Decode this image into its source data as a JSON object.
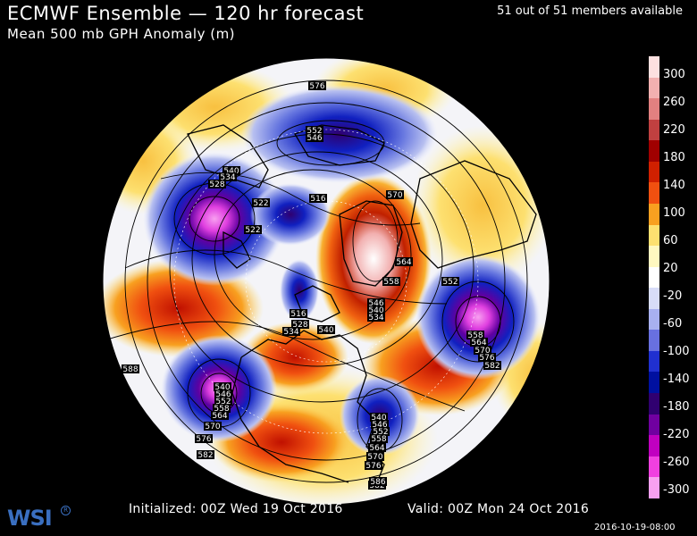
{
  "header": {
    "title": "ECMWF Ensemble — 120 hr forecast",
    "subtitle": "Mean 500 mb GPH Anomaly (m)",
    "members": "51 out of 51 members available"
  },
  "footer": {
    "initialized": "Initialized: 00Z Wed 19 Oct 2016",
    "valid": "Valid: 00Z Mon 24 Oct 2016",
    "timestamp": "2016-10-19-08:00",
    "logo": "WSI",
    "logo_mark": "R"
  },
  "colorbar": {
    "ticks": [
      "300",
      "260",
      "220",
      "180",
      "140",
      "100",
      "60",
      "20",
      "-20",
      "-60",
      "-100",
      "-140",
      "-180",
      "-220",
      "-260",
      "-300"
    ],
    "colors": [
      "#fde0e0",
      "#f2b0b0",
      "#e28080",
      "#c04040",
      "#a00000",
      "#d02000",
      "#f05010",
      "#f8a020",
      "#fde070",
      "#fff8c0",
      "#ffffff",
      "#d8dcf8",
      "#a8b0f0",
      "#6870e0",
      "#2030d0",
      "#0010a0",
      "#300070",
      "#7000a0",
      "#c000c0",
      "#f040e0",
      "#f8a0f0"
    ]
  },
  "contour_labels": [
    "576",
    "552",
    "546",
    "540",
    "534",
    "528",
    "522",
    "522",
    "516",
    "570",
    "564",
    "558",
    "552",
    "546",
    "540",
    "534",
    "516",
    "528",
    "534",
    "540",
    "558",
    "564",
    "570",
    "576",
    "582",
    "588",
    "540",
    "546",
    "552",
    "558",
    "564",
    "570",
    "576",
    "582",
    "540",
    "546",
    "552",
    "558",
    "564",
    "570",
    "576",
    "582",
    "586"
  ],
  "colors": {
    "background": "#000000",
    "ocean_outside": "#000000",
    "positive_strong": "#c00000",
    "negative_strong": "#1010c0"
  }
}
